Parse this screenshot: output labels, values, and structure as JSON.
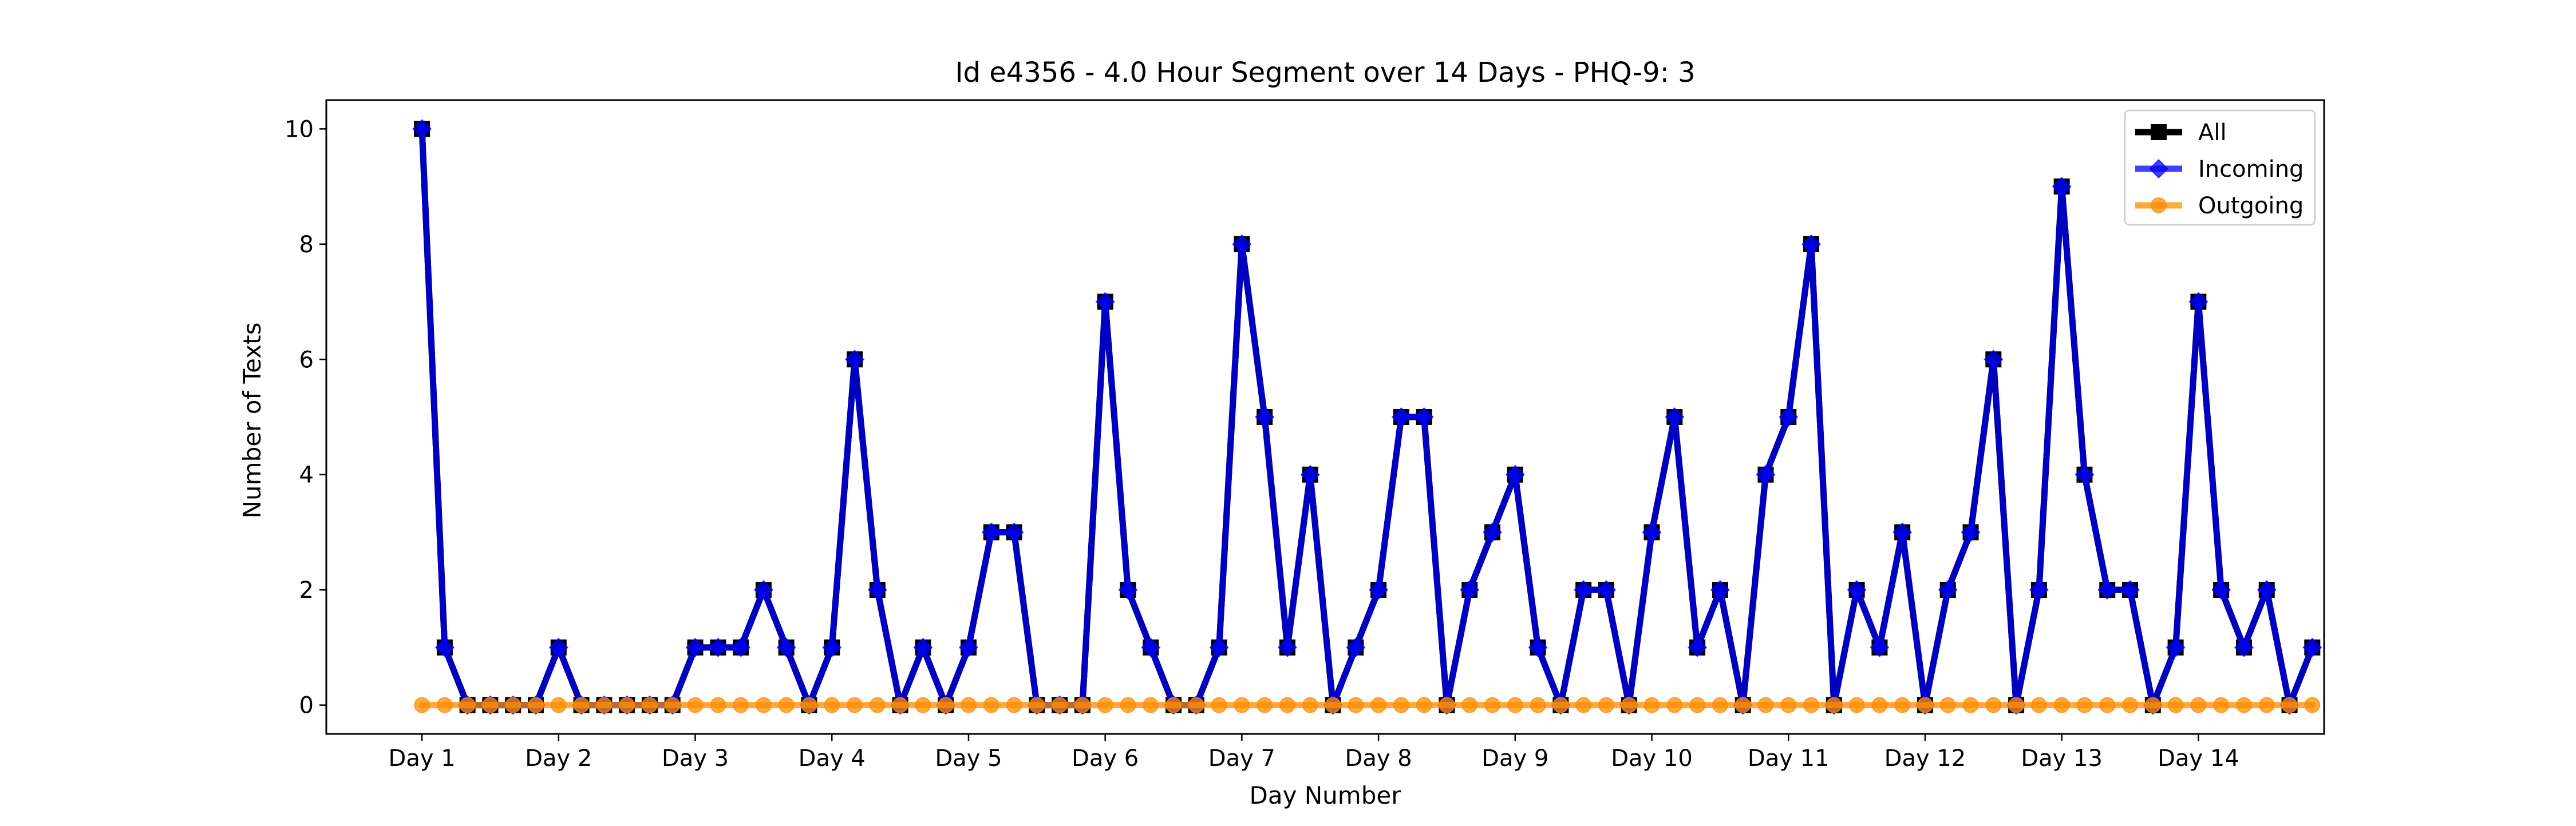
{
  "chart_data": {
    "type": "line",
    "title": "Id e4356 - 4.0 Hour Segment over 14 Days - PHQ-9: 3",
    "xlabel": "Day Number",
    "ylabel": "Number of Texts",
    "x_tick_labels": [
      "Day 1",
      "Day 2",
      "Day 3",
      "Day 4",
      "Day 5",
      "Day 6",
      "Day 7",
      "Day 8",
      "Day 9",
      "Day 10",
      "Day 11",
      "Day 12",
      "Day 13",
      "Day 14"
    ],
    "y_ticks": [
      0,
      2,
      4,
      6,
      8,
      10
    ],
    "ylim": [
      -0.5,
      10.5
    ],
    "xlim": [
      -0.7,
      13.92
    ],
    "segments_per_day": 6,
    "grid": false,
    "legend_position": "top-right",
    "series": [
      {
        "name": "All",
        "color": "#000000",
        "marker": "square",
        "values": [
          10,
          1,
          0,
          0,
          0,
          0,
          1,
          0,
          0,
          0,
          0,
          0,
          1,
          1,
          1,
          2,
          1,
          0,
          1,
          6,
          2,
          0,
          1,
          0,
          1,
          3,
          3,
          0,
          0,
          0,
          7,
          2,
          1,
          0,
          0,
          1,
          8,
          5,
          1,
          4,
          0,
          1,
          2,
          5,
          5,
          0,
          2,
          3,
          4,
          1,
          0,
          2,
          2,
          0,
          3,
          5,
          1,
          2,
          0,
          4,
          5,
          8,
          0,
          2,
          1,
          3,
          0,
          2,
          3,
          6,
          0,
          2,
          9,
          4,
          2,
          2,
          0,
          1,
          7,
          2,
          1,
          2,
          0,
          1
        ]
      },
      {
        "name": "Incoming",
        "color": "#0000ff",
        "marker": "diamond",
        "values": [
          10,
          1,
          0,
          0,
          0,
          0,
          1,
          0,
          0,
          0,
          0,
          0,
          1,
          1,
          1,
          2,
          1,
          0,
          1,
          6,
          2,
          0,
          1,
          0,
          1,
          3,
          3,
          0,
          0,
          0,
          7,
          2,
          1,
          0,
          0,
          1,
          8,
          5,
          1,
          4,
          0,
          1,
          2,
          5,
          5,
          0,
          2,
          3,
          4,
          1,
          0,
          2,
          2,
          0,
          3,
          5,
          1,
          2,
          0,
          4,
          5,
          8,
          0,
          2,
          1,
          3,
          0,
          2,
          3,
          6,
          0,
          2,
          9,
          4,
          2,
          2,
          0,
          1,
          7,
          2,
          1,
          2,
          0,
          1
        ]
      },
      {
        "name": "Outgoing",
        "color": "#ff8c00",
        "marker": "circle",
        "values": [
          0,
          0,
          0,
          0,
          0,
          0,
          0,
          0,
          0,
          0,
          0,
          0,
          0,
          0,
          0,
          0,
          0,
          0,
          0,
          0,
          0,
          0,
          0,
          0,
          0,
          0,
          0,
          0,
          0,
          0,
          0,
          0,
          0,
          0,
          0,
          0,
          0,
          0,
          0,
          0,
          0,
          0,
          0,
          0,
          0,
          0,
          0,
          0,
          0,
          0,
          0,
          0,
          0,
          0,
          0,
          0,
          0,
          0,
          0,
          0,
          0,
          0,
          0,
          0,
          0,
          0,
          0,
          0,
          0,
          0,
          0,
          0,
          0,
          0,
          0,
          0,
          0,
          0,
          0,
          0,
          0,
          0,
          0,
          0
        ]
      }
    ]
  }
}
